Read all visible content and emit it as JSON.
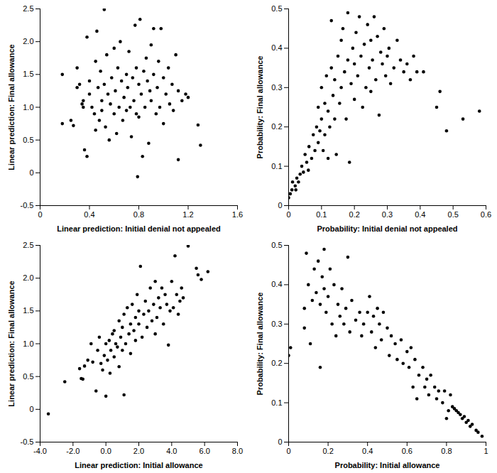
{
  "chart_data": [
    {
      "type": "scatter",
      "color": "#000000",
      "marker": "circle",
      "x_label": "Linear prediction: Initial denial not appealed",
      "y_label": "Linear prediction: Final allowance",
      "xlim": [
        0,
        1.6
      ],
      "xticks": [
        0,
        0.4,
        0.8,
        1.2,
        1.6
      ],
      "ylim": [
        -0.5,
        2.5
      ],
      "yticks": [
        -0.5,
        0,
        0.5,
        {
          "value": 1,
          "label": "1.0"
        },
        1.5,
        {
          "value": 2,
          "label": "2.0"
        },
        2.5
      ],
      "x": [
        0.18,
        0.18,
        0.25,
        0.27,
        0.3,
        0.3,
        0.32,
        0.34,
        0.35,
        0.36,
        0.38,
        0.35,
        0.38,
        0.4,
        0.4,
        0.42,
        0.44,
        0.45,
        0.45,
        0.46,
        0.47,
        0.48,
        0.49,
        0.5,
        0.5,
        0.52,
        0.52,
        0.53,
        0.54,
        0.55,
        0.56,
        0.57,
        0.58,
        0.6,
        0.6,
        0.61,
        0.62,
        0.63,
        0.64,
        0.65,
        0.66,
        0.67,
        0.68,
        0.7,
        0.7,
        0.71,
        0.72,
        0.73,
        0.74,
        0.75,
        0.76,
        0.77,
        0.78,
        0.78,
        0.79,
        0.8,
        0.8,
        0.81,
        0.82,
        0.83,
        0.84,
        0.85,
        0.86,
        0.87,
        0.88,
        0.89,
        0.9,
        0.9,
        0.92,
        0.92,
        0.94,
        0.95,
        0.96,
        0.97,
        0.98,
        1.0,
        1.0,
        1.02,
        1.04,
        1.05,
        1.07,
        1.08,
        1.1,
        1.12,
        1.12,
        1.15,
        1.18,
        1.2,
        1.28,
        1.3
      ],
      "values": [
        1.5,
        0.75,
        0.8,
        0.72,
        1.6,
        1.3,
        1.35,
        1.05,
        1.1,
        0.35,
        0.25,
        1.0,
        2.07,
        1.4,
        1.2,
        1.0,
        0.9,
        0.65,
        1.7,
        2.16,
        1.3,
        0.8,
        1.55,
        1.1,
        0.95,
        2.49,
        1.35,
        0.7,
        1.8,
        1.2,
        0.5,
        1.05,
        1.45,
        1.9,
        0.9,
        1.25,
        0.6,
        1.6,
        1.0,
        2.0,
        1.4,
        0.8,
        1.15,
        1.5,
        0.95,
        1.3,
        1.85,
        1.0,
        0.55,
        1.45,
        1.1,
        2.25,
        1.6,
        0.9,
        -0.06,
        1.35,
        0.85,
        2.34,
        1.2,
        0.25,
        1.55,
        1.0,
        1.75,
        1.4,
        0.45,
        1.25,
        1.95,
        1.1,
        2.2,
        1.5,
        0.9,
        1.3,
        1.7,
        1.0,
        2.2,
        1.45,
        0.75,
        1.2,
        1.6,
        1.05,
        1.35,
        0.95,
        1.8,
        0.2,
        1.25,
        1.1,
        1.2,
        1.15,
        0.73,
        0.42
      ]
    },
    {
      "type": "scatter",
      "color": "#000000",
      "marker": "circle",
      "x_label": "Probability: Initial denial not appealed",
      "y_label": "Probability: Final allowance",
      "xlim": [
        0,
        0.6
      ],
      "xticks": [
        0,
        0.1,
        0.2,
        0.3,
        0.4,
        0.5,
        0.6
      ],
      "ylim": [
        0,
        0.5
      ],
      "yticks": [
        0,
        0.1,
        0.2,
        0.3,
        0.4,
        0.5
      ],
      "x": [
        0,
        0.005,
        0.01,
        0.012,
        0.02,
        0.022,
        0.025,
        0.03,
        0.035,
        0.04,
        0.045,
        0.05,
        0.055,
        0.06,
        0.062,
        0.07,
        0.075,
        0.08,
        0.085,
        0.09,
        0.09,
        0.095,
        0.1,
        0.1,
        0.105,
        0.11,
        0.11,
        0.115,
        0.12,
        0.12,
        0.125,
        0.13,
        0.13,
        0.135,
        0.14,
        0.14,
        0.145,
        0.15,
        0.155,
        0.16,
        0.16,
        0.165,
        0.17,
        0.175,
        0.18,
        0.18,
        0.185,
        0.19,
        0.195,
        0.2,
        0.2,
        0.205,
        0.21,
        0.215,
        0.22,
        0.225,
        0.23,
        0.235,
        0.24,
        0.245,
        0.25,
        0.25,
        0.255,
        0.26,
        0.265,
        0.27,
        0.275,
        0.28,
        0.285,
        0.29,
        0.295,
        0.3,
        0.305,
        0.31,
        0.32,
        0.33,
        0.34,
        0.35,
        0.36,
        0.37,
        0.38,
        0.39,
        0.41,
        0.45,
        0.46,
        0.48,
        0.53,
        0.58
      ],
      "values": [
        0.02,
        0.03,
        0.04,
        0.06,
        0.05,
        0.04,
        0.07,
        0.06,
        0.08,
        0.1,
        0.085,
        0.13,
        0.11,
        0.09,
        0.15,
        0.12,
        0.18,
        0.14,
        0.2,
        0.16,
        0.25,
        0.19,
        0.22,
        0.3,
        0.14,
        0.26,
        0.18,
        0.33,
        0.24,
        0.12,
        0.2,
        0.35,
        0.47,
        0.28,
        0.22,
        0.32,
        0.13,
        0.38,
        0.26,
        0.42,
        0.3,
        0.45,
        0.34,
        0.22,
        0.49,
        0.37,
        0.11,
        0.31,
        0.4,
        0.27,
        0.36,
        0.44,
        0.33,
        0.48,
        0.38,
        0.25,
        0.41,
        0.3,
        0.46,
        0.35,
        0.42,
        0.29,
        0.37,
        0.48,
        0.32,
        0.43,
        0.23,
        0.39,
        0.36,
        0.45,
        0.33,
        0.38,
        0.4,
        0.31,
        0.35,
        0.42,
        0.37,
        0.34,
        0.36,
        0.32,
        0.38,
        0.34,
        0.34,
        0.25,
        0.29,
        0.19,
        0.22,
        0.24
      ]
    },
    {
      "type": "scatter",
      "color": "#000000",
      "marker": "circle",
      "x_label": "Linear prediction: Initial allowance",
      "y_label": "Linear prediction: Final allowance",
      "xlim": [
        -4,
        8
      ],
      "xticks": [
        {
          "value": -4,
          "label": "-4.0"
        },
        {
          "value": -2,
          "label": "-2.0"
        },
        {
          "value": 0,
          "label": "0.0"
        },
        {
          "value": 2,
          "label": "2.0"
        },
        {
          "value": 4,
          "label": "4.0"
        },
        {
          "value": 6,
          "label": "6.0"
        },
        {
          "value": 8,
          "label": "8.0"
        }
      ],
      "ylim": [
        -0.5,
        2.5
      ],
      "yticks": [
        -0.5,
        0,
        0.5,
        {
          "value": 1,
          "label": "1.0"
        },
        1.5,
        {
          "value": 2,
          "label": "2.0"
        },
        2.5
      ],
      "x": [
        -3.5,
        -2.5,
        -1.6,
        -1.5,
        -1.4,
        -1.3,
        -1.1,
        -0.9,
        -0.8,
        -0.6,
        -0.5,
        -0.4,
        -0.3,
        -0.2,
        -0.1,
        0,
        0,
        0.1,
        0.2,
        0.25,
        0.3,
        0.4,
        0.5,
        0.5,
        0.6,
        0.7,
        0.8,
        0.8,
        0.9,
        1.0,
        1.0,
        1.1,
        1.1,
        1.2,
        1.3,
        1.4,
        1.5,
        1.5,
        1.6,
        1.7,
        1.8,
        1.8,
        1.9,
        2.0,
        2.0,
        2.1,
        2.2,
        2.3,
        2.4,
        2.5,
        2.6,
        2.7,
        2.8,
        2.9,
        3.0,
        3.0,
        3.1,
        3.2,
        3.3,
        3.4,
        3.5,
        3.6,
        3.7,
        3.8,
        3.9,
        4.0,
        4.1,
        4.2,
        4.3,
        4.4,
        4.5,
        4.6,
        4.7,
        5.0,
        5.5,
        5.6,
        5.8,
        6.2
      ],
      "values": [
        -0.07,
        0.42,
        0.62,
        0.47,
        0.46,
        0.66,
        0.75,
        1.0,
        0.72,
        0.28,
        0.9,
        1.1,
        0.7,
        0.6,
        0.82,
        1.0,
        0.2,
        0.75,
        1.05,
        0.55,
        0.9,
        1.15,
        0.8,
        1.2,
        1.0,
        0.95,
        1.35,
        0.65,
        1.1,
        0.9,
        1.25,
        0.22,
        1.45,
        1.0,
        1.55,
        1.15,
        1.3,
        0.85,
        1.6,
        1.2,
        1.05,
        1.4,
        1.75,
        1.3,
        1.5,
        2.18,
        1.1,
        1.45,
        1.65,
        1.25,
        1.5,
        1.85,
        1.35,
        1.6,
        1.95,
        1.15,
        1.4,
        1.7,
        1.55,
        1.85,
        1.3,
        1.75,
        1.6,
        0.98,
        1.5,
        1.95,
        1.55,
        2.34,
        1.75,
        1.45,
        1.65,
        1.85,
        1.7,
        2.49,
        2.15,
        2.05,
        1.98,
        2.1
      ]
    },
    {
      "type": "scatter",
      "color": "#000000",
      "marker": "circle",
      "x_label": "Probability: Initial allowance",
      "y_label": "Probability: Final allowance",
      "xlim": [
        0,
        1
      ],
      "xticks": [
        0,
        0.2,
        0.4,
        0.6,
        0.8,
        1
      ],
      "ylim": [
        0,
        0.5
      ],
      "yticks": [
        0,
        0.1,
        0.2,
        0.3,
        0.4,
        0.5
      ],
      "x": [
        0.0,
        0.01,
        0.08,
        0.08,
        0.09,
        0.1,
        0.11,
        0.12,
        0.13,
        0.14,
        0.15,
        0.16,
        0.16,
        0.17,
        0.18,
        0.18,
        0.19,
        0.2,
        0.21,
        0.22,
        0.23,
        0.24,
        0.25,
        0.26,
        0.27,
        0.28,
        0.29,
        0.3,
        0.31,
        0.32,
        0.34,
        0.36,
        0.37,
        0.38,
        0.4,
        0.41,
        0.42,
        0.43,
        0.44,
        0.45,
        0.46,
        0.47,
        0.48,
        0.5,
        0.51,
        0.52,
        0.54,
        0.55,
        0.57,
        0.58,
        0.6,
        0.61,
        0.62,
        0.63,
        0.64,
        0.65,
        0.66,
        0.68,
        0.69,
        0.7,
        0.71,
        0.72,
        0.74,
        0.75,
        0.76,
        0.78,
        0.79,
        0.8,
        0.81,
        0.82,
        0.83,
        0.84,
        0.85,
        0.86,
        0.87,
        0.88,
        0.89,
        0.9,
        0.91,
        0.92,
        0.93,
        0.95,
        0.96,
        0.98
      ],
      "values": [
        0.22,
        0.24,
        0.29,
        0.34,
        0.48,
        0.4,
        0.25,
        0.36,
        0.44,
        0.38,
        0.46,
        0.19,
        0.35,
        0.42,
        0.49,
        0.39,
        0.33,
        0.37,
        0.44,
        0.3,
        0.4,
        0.27,
        0.35,
        0.32,
        0.39,
        0.3,
        0.34,
        0.47,
        0.28,
        0.36,
        0.31,
        0.33,
        0.27,
        0.3,
        0.33,
        0.37,
        0.28,
        0.32,
        0.24,
        0.34,
        0.3,
        0.26,
        0.33,
        0.29,
        0.22,
        0.27,
        0.25,
        0.21,
        0.26,
        0.2,
        0.23,
        0.19,
        0.24,
        0.14,
        0.21,
        0.11,
        0.17,
        0.19,
        0.14,
        0.16,
        0.12,
        0.17,
        0.14,
        0.11,
        0.13,
        0.1,
        0.13,
        0.06,
        0.08,
        0.12,
        0.09,
        0.085,
        0.08,
        0.075,
        0.07,
        0.06,
        0.065,
        0.05,
        0.055,
        0.04,
        0.045,
        0.03,
        0.025,
        0.015
      ]
    }
  ]
}
